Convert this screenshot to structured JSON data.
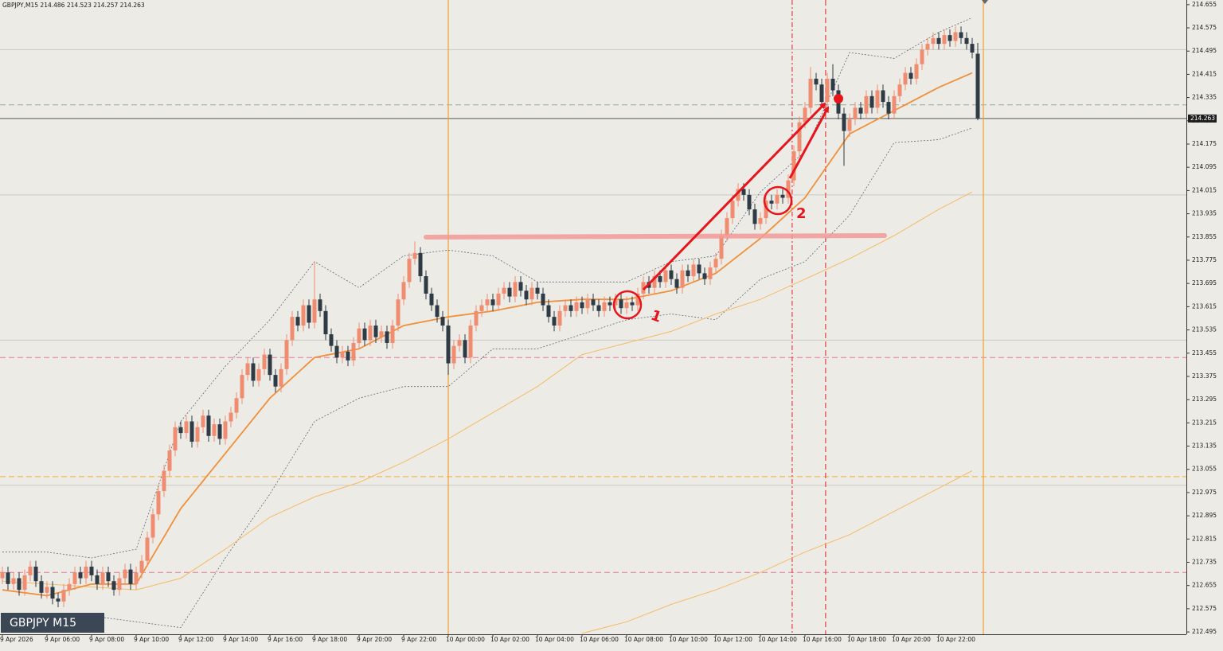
{
  "chart_data": {
    "type": "candlestick",
    "symbol": "GBPJPY,M15",
    "watermark": "GBPJPY M15",
    "categories": [
      "9 Apr 2026",
      null,
      null,
      null,
      null,
      null,
      null,
      null,
      "9 Apr 06:00",
      null,
      null,
      null,
      null,
      null,
      null,
      null,
      "9 Apr 08:00",
      null,
      null,
      null,
      null,
      null,
      null,
      null,
      "9 Apr 10:00",
      null,
      null,
      null,
      null,
      null,
      null,
      null,
      "9 Apr 12:00",
      null,
      null,
      null,
      null,
      null,
      null,
      null,
      "9 Apr 14:00",
      null,
      null,
      null,
      null,
      null,
      null,
      null,
      "9 Apr 16:00",
      null,
      null,
      null,
      null,
      null,
      null,
      null,
      "9 Apr 18:00",
      null,
      null,
      null,
      null,
      null,
      null,
      null,
      "9 Apr 20:00",
      null,
      null,
      null,
      null,
      null,
      null,
      null,
      "9 Apr 22:00",
      null,
      null,
      null,
      null,
      null,
      null,
      null,
      "10 Apr 00:00",
      null,
      null,
      null,
      null,
      null,
      null,
      null,
      "10 Apr 02:00",
      null,
      null,
      null,
      null,
      null,
      null,
      null,
      "10 Apr 04:00",
      null,
      null,
      null,
      null,
      null,
      null,
      null,
      "10 Apr 06:00",
      null,
      null,
      null,
      null,
      null,
      null,
      null,
      "10 Apr 08:00",
      null,
      null,
      null,
      null,
      null,
      null,
      null,
      "10 Apr 10:00",
      null,
      null,
      null,
      null,
      null,
      null,
      null,
      "10 Apr 12:00",
      null,
      null,
      null,
      null,
      null,
      null,
      null,
      "10 Apr 14:00",
      null,
      null,
      null,
      null,
      null,
      null,
      null,
      "10 Apr 16:00",
      null,
      null,
      null,
      null,
      null,
      null,
      null,
      "10 Apr 18:00",
      null,
      null,
      null,
      null,
      null,
      null,
      null,
      "10 Apr 20:00",
      null,
      null,
      null,
      null,
      null,
      null,
      null,
      "10 Apr 22:00",
      null,
      null,
      null,
      null,
      null,
      null,
      null
    ],
    "open": [
      212.68,
      212.7,
      212.66,
      212.68,
      212.64,
      212.69,
      212.72,
      212.67,
      212.63,
      212.65,
      212.61,
      212.6,
      212.64,
      212.66,
      212.7,
      212.68,
      212.72,
      212.69,
      212.66,
      212.7,
      212.67,
      212.64,
      212.68,
      212.71,
      212.66,
      212.7,
      212.74,
      212.82,
      212.9,
      212.98,
      213.05,
      213.12,
      213.2,
      213.18,
      213.22,
      213.15,
      213.2,
      213.24,
      213.17,
      213.21,
      213.16,
      213.22,
      213.25,
      213.3,
      213.38,
      213.42,
      213.36,
      213.4,
      213.45,
      213.38,
      213.34,
      213.4,
      213.5,
      213.58,
      213.55,
      213.62,
      213.56,
      213.64,
      213.6,
      213.52,
      213.48,
      213.44,
      213.46,
      213.43,
      213.49,
      213.54,
      213.5,
      213.55,
      213.51,
      213.53,
      213.49,
      213.55,
      213.64,
      213.7,
      213.78,
      213.8,
      213.72,
      213.66,
      213.62,
      213.58,
      213.55,
      213.42,
      213.48,
      213.5,
      213.44,
      213.55,
      213.6,
      213.62,
      213.64,
      213.62,
      213.66,
      213.68,
      213.65,
      213.7,
      213.67,
      213.64,
      213.68,
      213.66,
      213.62,
      213.58,
      213.55,
      213.6,
      213.62,
      213.6,
      213.63,
      213.61,
      213.64,
      213.62,
      213.6,
      213.63,
      213.62,
      213.64,
      213.61,
      213.63,
      213.62,
      213.66,
      213.7,
      213.68,
      213.72,
      213.7,
      213.74,
      213.71,
      213.68,
      213.74,
      213.72,
      213.76,
      213.73,
      213.71,
      213.75,
      213.78,
      213.86,
      213.92,
      213.98,
      214.02,
      214.0,
      213.95,
      213.9,
      213.92,
      213.98,
      213.97,
      214.0,
      213.99,
      214.05,
      214.15,
      214.25,
      214.3,
      214.4,
      214.38,
      214.32,
      214.4,
      214.36,
      214.28,
      214.22,
      214.26,
      214.3,
      214.28,
      214.34,
      214.3,
      214.36,
      214.32,
      214.28,
      214.34,
      214.38,
      214.42,
      214.4,
      214.45,
      214.5,
      214.52,
      214.54,
      214.52,
      214.55,
      214.53,
      214.56,
      214.54,
      214.52,
      214.486
    ],
    "high": [
      212.72,
      212.72,
      212.7,
      212.7,
      212.71,
      212.74,
      212.74,
      212.69,
      212.67,
      212.67,
      212.63,
      212.66,
      212.68,
      212.72,
      212.72,
      212.74,
      212.74,
      212.71,
      212.72,
      212.72,
      212.69,
      212.7,
      212.73,
      212.73,
      212.72,
      212.76,
      212.84,
      212.92,
      213.0,
      213.07,
      213.14,
      213.22,
      213.22,
      213.24,
      213.24,
      213.22,
      213.26,
      213.26,
      213.23,
      213.23,
      213.24,
      213.27,
      213.32,
      213.4,
      213.44,
      213.44,
      213.42,
      213.47,
      213.47,
      213.4,
      213.42,
      213.52,
      213.6,
      213.6,
      213.64,
      213.64,
      213.77,
      213.66,
      213.62,
      213.54,
      213.5,
      213.48,
      213.48,
      213.51,
      213.56,
      213.56,
      213.57,
      213.57,
      213.55,
      213.55,
      213.57,
      213.66,
      213.72,
      213.8,
      213.84,
      213.82,
      213.74,
      213.68,
      213.64,
      213.6,
      213.57,
      213.5,
      213.52,
      213.52,
      213.57,
      213.62,
      213.64,
      213.66,
      213.66,
      213.68,
      213.7,
      213.7,
      213.72,
      213.72,
      213.69,
      213.7,
      213.7,
      213.68,
      213.64,
      213.6,
      213.62,
      213.64,
      213.64,
      213.65,
      213.65,
      213.66,
      213.66,
      213.64,
      213.65,
      213.65,
      213.66,
      213.66,
      213.65,
      213.65,
      213.68,
      213.72,
      213.72,
      213.74,
      213.74,
      213.76,
      213.76,
      213.73,
      213.76,
      213.76,
      213.78,
      213.78,
      213.75,
      213.77,
      213.8,
      213.88,
      213.94,
      214.0,
      214.04,
      214.04,
      214.02,
      213.97,
      213.94,
      214.0,
      214.0,
      214.02,
      214.02,
      214.07,
      214.17,
      214.27,
      214.32,
      214.44,
      214.42,
      214.4,
      214.42,
      214.45,
      214.38,
      214.3,
      214.28,
      214.32,
      214.32,
      214.36,
      214.36,
      214.38,
      214.38,
      214.34,
      214.36,
      214.4,
      214.44,
      214.44,
      214.47,
      214.52,
      214.54,
      214.56,
      214.56,
      214.57,
      214.57,
      214.58,
      214.58,
      214.56,
      214.54,
      214.523
    ],
    "low": [
      212.66,
      212.64,
      212.64,
      212.62,
      212.62,
      212.67,
      212.65,
      212.61,
      212.61,
      212.59,
      212.58,
      212.58,
      212.62,
      212.64,
      212.66,
      212.66,
      212.67,
      212.64,
      212.64,
      212.65,
      212.62,
      212.62,
      212.66,
      212.64,
      212.64,
      212.68,
      212.72,
      212.8,
      212.88,
      212.96,
      213.03,
      213.1,
      213.16,
      213.16,
      213.13,
      213.13,
      213.18,
      213.15,
      213.15,
      213.14,
      213.14,
      213.2,
      213.23,
      213.28,
      213.36,
      213.34,
      213.34,
      213.38,
      213.36,
      213.32,
      213.32,
      213.38,
      213.48,
      213.53,
      213.53,
      213.54,
      213.54,
      213.58,
      213.5,
      213.46,
      213.42,
      213.42,
      213.41,
      213.41,
      213.47,
      213.48,
      213.48,
      213.49,
      213.49,
      213.47,
      213.47,
      213.53,
      213.62,
      213.68,
      213.76,
      213.7,
      213.64,
      213.6,
      213.56,
      213.53,
      213.38,
      213.4,
      213.46,
      213.42,
      213.42,
      213.53,
      213.58,
      213.6,
      213.6,
      213.6,
      213.64,
      213.63,
      213.63,
      213.65,
      213.62,
      213.62,
      213.64,
      213.6,
      213.56,
      213.53,
      213.53,
      213.58,
      213.58,
      213.58,
      213.59,
      213.59,
      213.6,
      213.58,
      213.58,
      213.6,
      213.6,
      213.59,
      213.59,
      213.6,
      213.6,
      213.64,
      213.66,
      213.66,
      213.68,
      213.68,
      213.69,
      213.66,
      213.66,
      213.7,
      213.7,
      213.71,
      213.69,
      213.69,
      213.73,
      213.76,
      213.84,
      213.9,
      213.96,
      213.98,
      213.93,
      213.88,
      213.88,
      213.9,
      213.95,
      213.95,
      213.97,
      213.97,
      214.03,
      214.13,
      214.23,
      214.28,
      214.36,
      214.3,
      214.3,
      214.34,
      214.26,
      214.1,
      214.2,
      214.24,
      214.26,
      214.26,
      214.28,
      214.28,
      214.3,
      214.26,
      214.26,
      214.32,
      214.36,
      214.38,
      214.38,
      214.43,
      214.48,
      214.5,
      214.5,
      214.5,
      214.51,
      214.51,
      214.52,
      214.5,
      214.47,
      214.257
    ],
    "close": [
      212.7,
      212.66,
      212.68,
      212.64,
      212.69,
      212.72,
      212.67,
      212.63,
      212.65,
      212.61,
      212.6,
      212.64,
      212.66,
      212.7,
      212.68,
      212.72,
      212.69,
      212.66,
      212.7,
      212.67,
      212.64,
      212.68,
      212.71,
      212.66,
      212.7,
      212.74,
      212.82,
      212.9,
      212.98,
      213.05,
      213.12,
      213.2,
      213.18,
      213.22,
      213.15,
      213.2,
      213.24,
      213.17,
      213.21,
      213.16,
      213.22,
      213.25,
      213.3,
      213.38,
      213.42,
      213.36,
      213.4,
      213.45,
      213.38,
      213.34,
      213.4,
      213.5,
      213.58,
      213.55,
      213.62,
      213.56,
      213.64,
      213.6,
      213.52,
      213.48,
      213.44,
      213.46,
      213.43,
      213.49,
      213.54,
      213.5,
      213.55,
      213.51,
      213.53,
      213.49,
      213.55,
      213.64,
      213.7,
      213.78,
      213.8,
      213.72,
      213.66,
      213.62,
      213.58,
      213.55,
      213.42,
      213.48,
      213.5,
      213.44,
      213.55,
      213.6,
      213.62,
      213.64,
      213.62,
      213.66,
      213.68,
      213.65,
      213.7,
      213.67,
      213.64,
      213.68,
      213.66,
      213.62,
      213.58,
      213.55,
      213.6,
      213.62,
      213.6,
      213.63,
      213.61,
      213.64,
      213.62,
      213.6,
      213.63,
      213.62,
      213.64,
      213.61,
      213.63,
      213.62,
      213.66,
      213.7,
      213.68,
      213.72,
      213.7,
      213.74,
      213.71,
      213.68,
      213.74,
      213.72,
      213.76,
      213.73,
      213.71,
      213.75,
      213.78,
      213.86,
      213.92,
      213.98,
      214.02,
      214.0,
      213.95,
      213.9,
      213.92,
      213.98,
      213.97,
      214.0,
      213.99,
      214.05,
      214.15,
      214.25,
      214.3,
      214.4,
      214.38,
      214.32,
      214.4,
      214.36,
      214.28,
      214.22,
      214.26,
      214.3,
      214.28,
      214.34,
      214.3,
      214.36,
      214.32,
      214.28,
      214.34,
      214.38,
      214.42,
      214.4,
      214.45,
      214.5,
      214.52,
      214.54,
      214.52,
      214.55,
      214.53,
      214.56,
      214.54,
      214.52,
      214.49,
      214.263
    ],
    "up_color": "#f08c70",
    "down_color": "#2e3a44",
    "ylim": [
      212.487,
      214.671
    ],
    "yticks": [
      214.655,
      214.575,
      214.495,
      214.415,
      214.335,
      214.255,
      214.175,
      214.095,
      214.015,
      213.935,
      213.855,
      213.775,
      213.695,
      213.615,
      213.535,
      213.455,
      213.375,
      213.295,
      213.215,
      213.135,
      213.055,
      212.975,
      212.895,
      212.815,
      212.735,
      212.655,
      212.575,
      212.495
    ],
    "levels": [
      {
        "value": 214.5,
        "color": "#c9c9c5",
        "style": "solid"
      },
      {
        "value": 214.0,
        "color": "#c9c9c5",
        "style": "solid"
      },
      {
        "value": 213.5,
        "color": "#c9c9c5",
        "style": "solid"
      },
      {
        "value": 213.0,
        "color": "#c9c9c5",
        "style": "solid"
      },
      {
        "value": 214.31,
        "color": "#93ab9c",
        "style": "dashed"
      },
      {
        "value": 213.44,
        "color": "#e27aa0",
        "style": "dashed"
      },
      {
        "value": 212.7,
        "color": "#e27aa0",
        "style": "dashed"
      },
      {
        "value": 213.03,
        "color": "#f0b030",
        "style": "dashed"
      }
    ],
    "vlines": [
      {
        "x": 80,
        "color": "#f0a030",
        "style": "solid"
      },
      {
        "x": 176,
        "color": "#f0a030",
        "style": "solid"
      },
      {
        "x": 141.7,
        "color": "#e04040",
        "style": "dashdot"
      },
      {
        "x": 147.7,
        "color": "#e04040",
        "style": "dashed"
      }
    ],
    "overlay_x": [
      0,
      8,
      16,
      24,
      32,
      40,
      48,
      56,
      64,
      72,
      80,
      88,
      96,
      104,
      112,
      120,
      128,
      136,
      144,
      152,
      160,
      168,
      174
    ],
    "overlays": [
      {
        "color": "#5f6a78",
        "width": 0.8,
        "style": "dotted",
        "values": [
          212.77,
          212.77,
          212.75,
          212.78,
          213.22,
          213.41,
          213.57,
          213.77,
          213.68,
          213.79,
          213.81,
          213.79,
          213.7,
          213.7,
          213.7,
          213.77,
          213.79,
          214.01,
          214.15,
          214.49,
          214.47,
          214.56,
          214.61
        ]
      },
      {
        "color": "#5f6a78",
        "width": 0.8,
        "style": "dotted",
        "values": [
          212.56,
          212.56,
          212.55,
          212.53,
          212.51,
          212.75,
          212.97,
          213.22,
          213.3,
          213.34,
          213.34,
          213.47,
          213.47,
          213.52,
          213.57,
          213.59,
          213.57,
          213.71,
          213.77,
          213.93,
          214.18,
          214.19,
          214.23
        ]
      },
      {
        "color": "#f5bb66",
        "width": 1,
        "style": "solid",
        "values": [
          212.67,
          212.66,
          212.65,
          212.64,
          212.68,
          212.78,
          212.89,
          212.96,
          213.01,
          213.08,
          213.16,
          213.25,
          213.34,
          213.45,
          213.49,
          213.53,
          213.59,
          213.64,
          213.71,
          213.78,
          213.86,
          213.95,
          214.01
        ]
      },
      {
        "color": "#f5bb66",
        "width": 1,
        "style": "solid",
        "values": [
          null,
          null,
          null,
          null,
          null,
          null,
          null,
          null,
          null,
          null,
          null,
          null,
          null,
          212.49,
          212.53,
          212.59,
          212.64,
          212.7,
          212.77,
          212.83,
          212.91,
          212.99,
          213.05
        ]
      },
      {
        "color": "#f0903a",
        "width": 1.8,
        "style": "solid",
        "values": [
          212.64,
          212.62,
          212.66,
          212.66,
          212.92,
          213.11,
          213.3,
          213.44,
          213.47,
          213.55,
          213.58,
          213.6,
          213.63,
          213.64,
          213.64,
          213.67,
          213.73,
          213.85,
          213.99,
          214.21,
          214.29,
          214.37,
          214.42
        ]
      }
    ],
    "annotations": [
      "1",
      "2"
    ]
  }
}
